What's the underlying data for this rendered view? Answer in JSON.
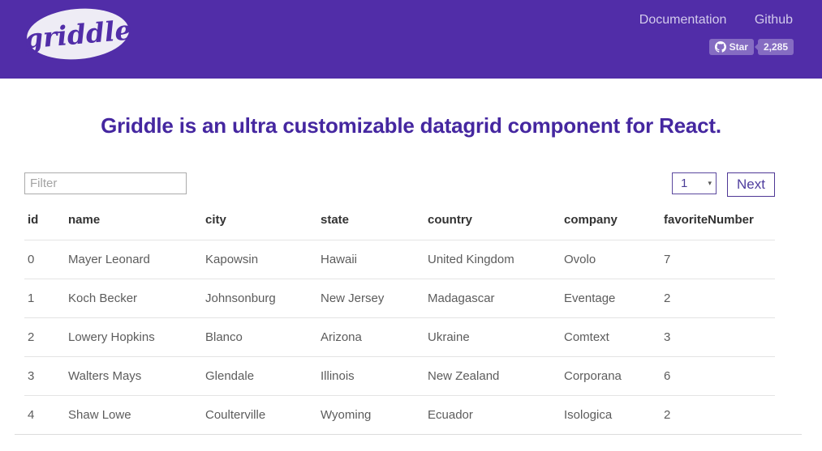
{
  "header": {
    "logo_text": "griddle",
    "nav": [
      {
        "label": "Documentation"
      },
      {
        "label": "Github"
      }
    ],
    "star_button": {
      "label": "Star",
      "count": "2,285"
    }
  },
  "hero": {
    "title": "Griddle is an ultra customizable datagrid component for React."
  },
  "toolbar": {
    "filter_placeholder": "Filter",
    "page_select_value": "1",
    "next_label": "Next"
  },
  "table": {
    "columns": [
      "id",
      "name",
      "city",
      "state",
      "country",
      "company",
      "favoriteNumber"
    ],
    "rows": [
      [
        "0",
        "Mayer Leonard",
        "Kapowsin",
        "Hawaii",
        "United Kingdom",
        "Ovolo",
        "7"
      ],
      [
        "1",
        "Koch Becker",
        "Johnsonburg",
        "New Jersey",
        "Madagascar",
        "Eventage",
        "2"
      ],
      [
        "2",
        "Lowery Hopkins",
        "Blanco",
        "Arizona",
        "Ukraine",
        "Comtext",
        "3"
      ],
      [
        "3",
        "Walters Mays",
        "Glendale",
        "Illinois",
        "New Zealand",
        "Corporana",
        "6"
      ],
      [
        "4",
        "Shaw Lowe",
        "Coulterville",
        "Wyoming",
        "Ecuador",
        "Isologica",
        "2"
      ]
    ]
  },
  "colors": {
    "header_bg": "#512da8",
    "heading_text": "#4527a0",
    "nav_link": "#d3cbec",
    "pager_accent": "#4f3d9e",
    "row_divider": "#e4e4e4",
    "body_text": "#5c5c5c"
  }
}
